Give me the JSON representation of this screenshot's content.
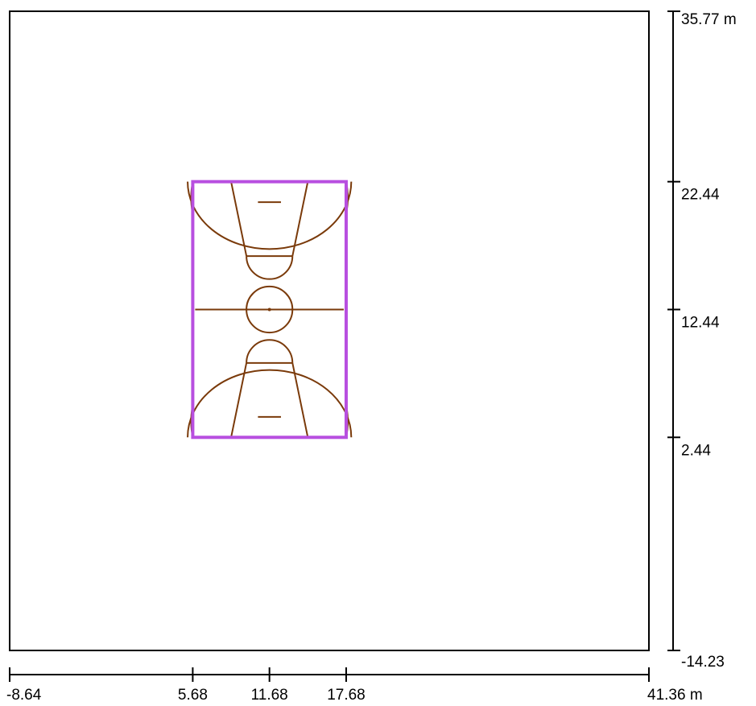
{
  "x_ruler": {
    "ticks": [
      {
        "value": -8.64,
        "label": "-8.64"
      },
      {
        "value": 5.68,
        "label": "5.68"
      },
      {
        "value": 11.68,
        "label": "11.68"
      },
      {
        "value": 17.68,
        "label": "17.68"
      },
      {
        "value": 41.36,
        "label": "41.36 m"
      }
    ]
  },
  "y_ruler": {
    "ticks": [
      {
        "value": 35.77,
        "label": "35.77 m"
      },
      {
        "value": 22.44,
        "label": "22.44"
      },
      {
        "value": 12.44,
        "label": "12.44"
      },
      {
        "value": 2.44,
        "label": "2.44"
      },
      {
        "value": -14.23,
        "label": "-14.23"
      }
    ]
  },
  "court": {
    "x_range": [
      5.68,
      17.68
    ],
    "y_range": [
      2.44,
      22.44
    ],
    "line_color": "#7a3a0a",
    "boundary_color": "#b84fe0"
  },
  "colors": {
    "frame": "#000000",
    "background": "#ffffff"
  }
}
